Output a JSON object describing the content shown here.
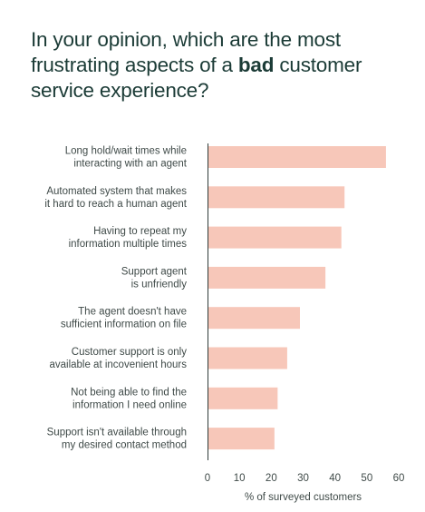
{
  "title": {
    "line1": "In your opinion, which are the most",
    "line2_before": "frustrating aspects of a ",
    "line2_bold": "bad",
    "line2_after": " customer",
    "line3": "service experience?"
  },
  "colors": {
    "bar": "#f7c7b9",
    "axis": "#2f3c3a",
    "text": "#3f4a48",
    "title": "#1b3b36"
  },
  "chart_data": {
    "type": "bar",
    "orientation": "horizontal",
    "categories": [
      [
        "Long hold/wait times while",
        "interacting with an agent"
      ],
      [
        "Automated system that makes",
        "it hard to reach a human agent"
      ],
      [
        "Having to repeat my",
        "information multiple times"
      ],
      [
        "Support agent",
        "is unfriendly"
      ],
      [
        "The agent doesn't have",
        "sufficient information on file"
      ],
      [
        "Customer support is only",
        "available at incovenient hours"
      ],
      [
        "Not being able to find the",
        "information I need online"
      ],
      [
        "Support isn't available through",
        "my desired contact method"
      ]
    ],
    "values": [
      56,
      43,
      42,
      37,
      29,
      25,
      22,
      21
    ],
    "xlim": [
      0,
      60
    ],
    "xticks": [
      0,
      10,
      20,
      30,
      40,
      50,
      60
    ],
    "xlabel": "% of surveyed customers",
    "ylabel": "",
    "grid": false
  }
}
